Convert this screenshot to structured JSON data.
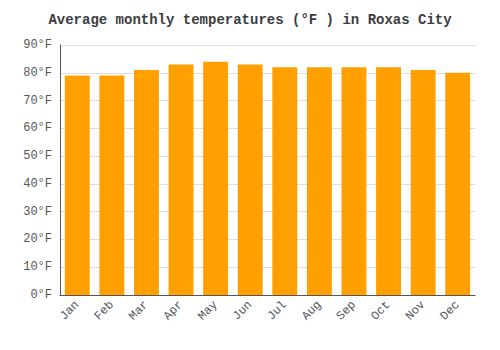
{
  "chart_data": {
    "type": "bar",
    "title": "Average monthly temperatures (°F ) in Roxas City",
    "categories": [
      "Jan",
      "Feb",
      "Mar",
      "Apr",
      "May",
      "Jun",
      "Jul",
      "Aug",
      "Sep",
      "Oct",
      "Nov",
      "Dec"
    ],
    "values": [
      79,
      79,
      81,
      83,
      84,
      83,
      82,
      82,
      82,
      82,
      81,
      80
    ],
    "color": "#FFA000",
    "ylim": [
      0,
      90
    ],
    "yticks": [
      {
        "value": 0,
        "label": "0°F"
      },
      {
        "value": 10,
        "label": "10°F"
      },
      {
        "value": 20,
        "label": "20°F"
      },
      {
        "value": 30,
        "label": "30°F"
      },
      {
        "value": 40,
        "label": "40°F"
      },
      {
        "value": 50,
        "label": "50°F"
      },
      {
        "value": 60,
        "label": "60°F"
      },
      {
        "value": 70,
        "label": "70°F"
      },
      {
        "value": 80,
        "label": "80°F"
      },
      {
        "value": 90,
        "label": "90°F"
      }
    ],
    "grid": true
  }
}
